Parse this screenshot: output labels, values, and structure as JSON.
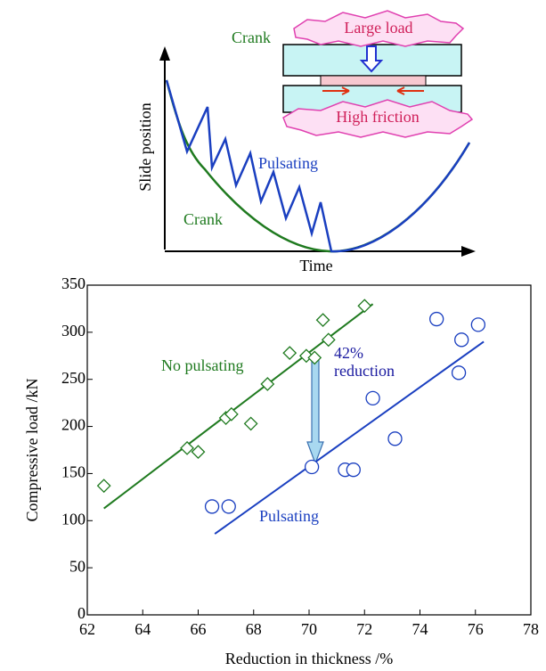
{
  "diagram": {
    "y_label": "Slide position",
    "x_label": "Time",
    "crank_top": "Crank",
    "crank_curve": "Crank",
    "pulsating_curve": "Pulsating",
    "large_load": "Large load",
    "high_friction": "High friction"
  },
  "chart_data": {
    "type": "scatter",
    "xlabel": "Reduction in thickness /%",
    "ylabel": "Compressive load /kN",
    "xlim": [
      62,
      78
    ],
    "xticks": [
      62,
      64,
      66,
      68,
      70,
      72,
      74,
      76,
      78
    ],
    "ylim": [
      0,
      350
    ],
    "yticks": [
      0,
      50,
      100,
      150,
      200,
      250,
      300,
      350
    ],
    "annotation": [
      "42%",
      "reduction"
    ],
    "series": [
      {
        "name": "No pulsating",
        "color": "#1f7a1f",
        "marker": "diamond",
        "x": [
          62.6,
          65.6,
          66.0,
          67.0,
          67.2,
          67.9,
          68.5,
          69.3,
          69.9,
          70.2,
          70.5,
          70.7,
          72.0
        ],
        "y": [
          137,
          177,
          173,
          209,
          213,
          203,
          245,
          278,
          275,
          273,
          313,
          292,
          328
        ],
        "fit": {
          "x": [
            62.6,
            72.3
          ],
          "y": [
            113,
            330
          ]
        }
      },
      {
        "name": "Pulsating",
        "color": "#1a3fc0",
        "marker": "circle",
        "x": [
          66.5,
          67.1,
          70.1,
          71.3,
          71.6,
          72.3,
          73.1,
          74.6,
          75.4,
          75.5,
          76.1
        ],
        "y": [
          115,
          115,
          157,
          154,
          154,
          230,
          187,
          314,
          257,
          292,
          308
        ],
        "fit": {
          "x": [
            66.6,
            76.3
          ],
          "y": [
            86,
            290
          ]
        }
      }
    ]
  }
}
